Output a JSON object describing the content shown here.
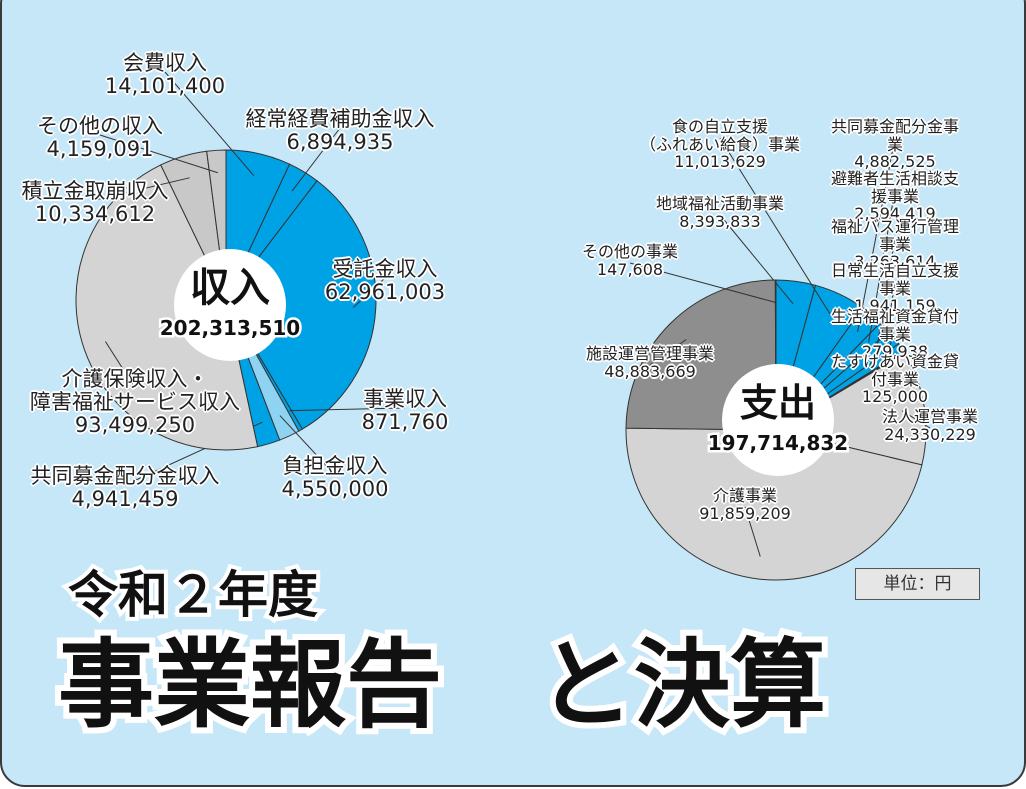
{
  "chart_data": [
    {
      "type": "pie",
      "center_label": "収入",
      "center_value": 202313510,
      "center_value_label": "202,313,510",
      "categories": [
        "会費収入",
        "経常経費補助金収入",
        "受託金収入",
        "事業収入",
        "負担金収入",
        "共同募金配分金収入",
        "介護保険収入・\n障害福祉サービス収入",
        "積立金取崩収入",
        "その他の収入"
      ],
      "values": [
        14101400,
        6894935,
        62961003,
        871760,
        4550000,
        4941459,
        93499250,
        10334612,
        4159091
      ],
      "value_labels": [
        "14,101,400",
        "6,894,935",
        "62,961,003",
        "871,760",
        "4,550,000",
        "4,941,459",
        "93,499,250",
        "10,334,612",
        "4,159,091"
      ],
      "colors": [
        "#00a2e6",
        "#00a2e6",
        "#00a2e6",
        "#00a2e6",
        "#8fd3f2",
        "#00a2e6",
        "#d4d4d4",
        "#c8c8c8",
        "#c8c8c8"
      ]
    },
    {
      "type": "pie",
      "center_label": "支出",
      "center_value": 197714832,
      "center_value_label": "197,714,832",
      "categories": [
        "地域福祉活動事業",
        "食の自立支援\n（ふれあい給食）事業",
        "共同募金配分金事業",
        "避難者生活相談支援事業",
        "福祉バス運行管理事業",
        "日常生活自立支援事業",
        "生活福祉資金貸付事業",
        "たすけあい資金貸付事業",
        "法人運営事業",
        "介護事業",
        "施設運営管理事業",
        "その他の事業"
      ],
      "values": [
        8393833,
        11013629,
        4882525,
        2594419,
        3263614,
        1941159,
        279938,
        125000,
        24330229,
        91859209,
        48883669,
        147608
      ],
      "value_labels": [
        "8,393,833",
        "11,013,629",
        "4,882,525",
        "2,594,419",
        "3,263,614",
        "1,941,159",
        "279,938",
        "125,000",
        "24,330,229",
        "91,859,209",
        "48,883,669",
        "147,608"
      ],
      "colors": [
        "#00a2e6",
        "#00a2e6",
        "#00a2e6",
        "#00a2e6",
        "#00a2e6",
        "#00a2e6",
        "#8fd3f2",
        "#8fd3f2",
        "#d4d4d4",
        "#d4d4d4",
        "#8e8e8e",
        "#8e8e8e"
      ]
    }
  ],
  "unit": "単位：円",
  "heading": {
    "year": "令和２年度",
    "title": "事業報告　と決算"
  }
}
